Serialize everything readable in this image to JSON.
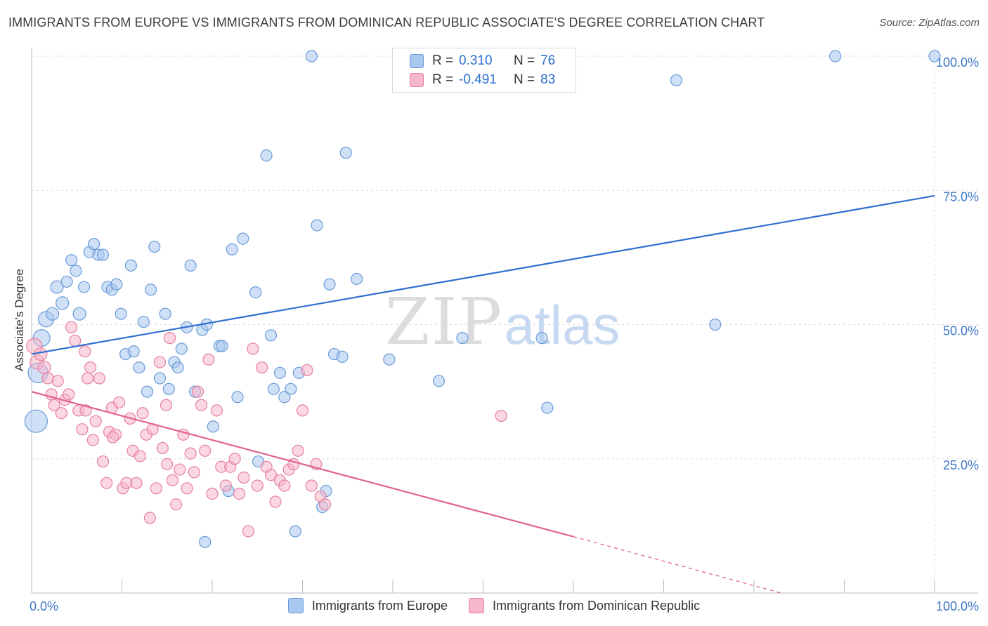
{
  "header": {
    "title": "IMMIGRANTS FROM EUROPE VS IMMIGRANTS FROM DOMINICAN REPUBLIC ASSOCIATE'S DEGREE CORRELATION CHART",
    "source": "Source: ZipAtlas.com"
  },
  "watermark": {
    "zip": "ZIP",
    "atlas": "atlas"
  },
  "legend": {
    "rows": [
      {
        "r_label": "R =",
        "r_value": "0.310",
        "n_label": "N =",
        "n_value": "76",
        "color": "#a9c8f0",
        "border": "#6a9bd8"
      },
      {
        "r_label": "R =",
        "r_value": "-0.491",
        "n_label": "N =",
        "n_value": "83",
        "color": "#f7b7cb",
        "border": "#e57fa2"
      }
    ]
  },
  "bottom_legend": [
    {
      "label": "Immigrants from Europe",
      "color": "#a9c8f0",
      "border": "#6a9bd8"
    },
    {
      "label": "Immigrants from Dominican Republic",
      "color": "#f7b7cb",
      "border": "#e57fa2"
    }
  ],
  "chart_data": {
    "type": "scatter",
    "title": "IMMIGRANTS FROM EUROPE VS IMMIGRANTS FROM DOMINICAN REPUBLIC ASSOCIATE'S DEGREE CORRELATION CHART",
    "xlabel": "",
    "ylabel": "Associate's Degree",
    "xlim": [
      0,
      100
    ],
    "ylim": [
      0,
      102
    ],
    "x_tick_labels": [
      {
        "value": 0,
        "label": "0.0%"
      },
      {
        "value": 100,
        "label": "100.0%"
      }
    ],
    "y_tick_labels": [
      {
        "value": 25,
        "label": "25.0%"
      },
      {
        "value": 50,
        "label": "50.0%"
      },
      {
        "value": 75,
        "label": "75.0%"
      },
      {
        "value": 100,
        "label": "100.0%"
      }
    ],
    "grid": true,
    "legend_position": "top-center",
    "series": [
      {
        "name": "Immigrants from Europe",
        "color": "#6a9bd8",
        "fill": "#a9c8f0",
        "trend": {
          "x": [
            0,
            100
          ],
          "y": [
            44.5,
            74
          ]
        },
        "points": [
          [
            0.5,
            32,
            16
          ],
          [
            0.7,
            41,
            14
          ],
          [
            1.1,
            47.5,
            12
          ],
          [
            1.6,
            51,
            11
          ],
          [
            2.3,
            52,
            9
          ],
          [
            2.8,
            57,
            9
          ],
          [
            3.4,
            54,
            9
          ],
          [
            3.9,
            58,
            8
          ],
          [
            4.4,
            62,
            8
          ],
          [
            4.9,
            60,
            8
          ],
          [
            5.3,
            52,
            9
          ],
          [
            5.8,
            57,
            8
          ],
          [
            6.4,
            63.5,
            8
          ],
          [
            6.9,
            65,
            8
          ],
          [
            7.4,
            63,
            8
          ],
          [
            7.9,
            63,
            8
          ],
          [
            8.4,
            57,
            8
          ],
          [
            8.9,
            56.5,
            8
          ],
          [
            9.4,
            57.5,
            8
          ],
          [
            9.9,
            52,
            8
          ],
          [
            10.4,
            44.5,
            8
          ],
          [
            11.0,
            61,
            8
          ],
          [
            11.3,
            45,
            8
          ],
          [
            11.9,
            42,
            8
          ],
          [
            12.4,
            50.5,
            8
          ],
          [
            12.8,
            37.5,
            8
          ],
          [
            13.2,
            56.5,
            8
          ],
          [
            13.6,
            64.5,
            8
          ],
          [
            14.2,
            40,
            8
          ],
          [
            14.8,
            52,
            8
          ],
          [
            15.2,
            38,
            8
          ],
          [
            15.8,
            43,
            8
          ],
          [
            16.2,
            42,
            8
          ],
          [
            16.6,
            45.5,
            8
          ],
          [
            17.2,
            49.5,
            8
          ],
          [
            17.6,
            61,
            8
          ],
          [
            18.1,
            37.5,
            8
          ],
          [
            18.9,
            49,
            8
          ],
          [
            19.2,
            9.5,
            8
          ],
          [
            19.4,
            50,
            8
          ],
          [
            20.1,
            31,
            8
          ],
          [
            20.8,
            46,
            8
          ],
          [
            21.1,
            46,
            8
          ],
          [
            21.8,
            19,
            8
          ],
          [
            22.2,
            64,
            8
          ],
          [
            22.8,
            36.5,
            8
          ],
          [
            23.4,
            66,
            8
          ],
          [
            24.8,
            56,
            8
          ],
          [
            25.1,
            24.5,
            8
          ],
          [
            26.0,
            81.5,
            8
          ],
          [
            26.5,
            48,
            8
          ],
          [
            26.8,
            38,
            8
          ],
          [
            27.5,
            41,
            8
          ],
          [
            28.0,
            36.5,
            8
          ],
          [
            28.7,
            38,
            8
          ],
          [
            29.2,
            11.5,
            8
          ],
          [
            29.6,
            41,
            8
          ],
          [
            31.0,
            100,
            8
          ],
          [
            31.6,
            68.5,
            8
          ],
          [
            32.2,
            16,
            8
          ],
          [
            32.6,
            19,
            8
          ],
          [
            33.0,
            57.5,
            8
          ],
          [
            33.5,
            44.5,
            8
          ],
          [
            34.4,
            44,
            8
          ],
          [
            34.8,
            82,
            8
          ],
          [
            36.0,
            58.5,
            8
          ],
          [
            39.6,
            43.5,
            8
          ],
          [
            45.1,
            39.5,
            8
          ],
          [
            47.7,
            47.5,
            8
          ],
          [
            50.5,
            100,
            8
          ],
          [
            56.5,
            47.5,
            8
          ],
          [
            57.1,
            34.5,
            8
          ],
          [
            71.4,
            95.5,
            8
          ],
          [
            75.7,
            50,
            8
          ],
          [
            89.0,
            100,
            8
          ],
          [
            100.0,
            100,
            8
          ]
        ]
      },
      {
        "name": "Immigrants from Dominican Republic",
        "color": "#e57fa2",
        "fill": "#f7b7cb",
        "trend": {
          "x": [
            0,
            60
          ],
          "y": [
            37.5,
            10.5
          ]
        },
        "trend_dashed": {
          "x": [
            60,
            83
          ],
          "y": [
            10.5,
            0
          ]
        },
        "points": [
          [
            0.3,
            46,
            11
          ],
          [
            0.6,
            43,
            10
          ],
          [
            1.0,
            44.5,
            9
          ],
          [
            1.4,
            42,
            9
          ],
          [
            1.8,
            40,
            8
          ],
          [
            2.2,
            37,
            8
          ],
          [
            2.5,
            35,
            8
          ],
          [
            2.9,
            39.5,
            8
          ],
          [
            3.3,
            33.5,
            8
          ],
          [
            3.7,
            36,
            8
          ],
          [
            4.1,
            37,
            8
          ],
          [
            4.4,
            49.5,
            8
          ],
          [
            4.8,
            47,
            8
          ],
          [
            5.2,
            34,
            8
          ],
          [
            5.6,
            30.5,
            8
          ],
          [
            5.9,
            45,
            8
          ],
          [
            6.2,
            40,
            8
          ],
          [
            6.5,
            42,
            8
          ],
          [
            6.8,
            28.5,
            8
          ],
          [
            7.1,
            32,
            8
          ],
          [
            7.5,
            40,
            8
          ],
          [
            7.9,
            24.5,
            8
          ],
          [
            8.3,
            20.5,
            8
          ],
          [
            8.6,
            30,
            8
          ],
          [
            8.9,
            34.5,
            8
          ],
          [
            9.3,
            29.5,
            8
          ],
          [
            9.7,
            35.5,
            8
          ],
          [
            10.1,
            19.5,
            8
          ],
          [
            10.5,
            20.5,
            8
          ],
          [
            10.9,
            32.5,
            8
          ],
          [
            11.2,
            26.5,
            8
          ],
          [
            11.6,
            20.5,
            8
          ],
          [
            12.0,
            25.5,
            8
          ],
          [
            12.3,
            33.5,
            8
          ],
          [
            12.7,
            29.5,
            8
          ],
          [
            13.1,
            14,
            8
          ],
          [
            13.4,
            30.5,
            8
          ],
          [
            13.8,
            19.5,
            8
          ],
          [
            14.2,
            43,
            8
          ],
          [
            14.5,
            27,
            8
          ],
          [
            14.9,
            35,
            8
          ],
          [
            15.3,
            47.5,
            8
          ],
          [
            15.6,
            21,
            8
          ],
          [
            16.0,
            16.5,
            8
          ],
          [
            16.4,
            23,
            8
          ],
          [
            16.8,
            29.5,
            8
          ],
          [
            17.2,
            19.5,
            8
          ],
          [
            17.6,
            26,
            8
          ],
          [
            18.0,
            22.5,
            8
          ],
          [
            18.4,
            37.5,
            8
          ],
          [
            18.8,
            35,
            8
          ],
          [
            19.2,
            26.5,
            8
          ],
          [
            19.6,
            43.5,
            8
          ],
          [
            20.0,
            18.5,
            8
          ],
          [
            20.5,
            34,
            8
          ],
          [
            21.0,
            23.5,
            8
          ],
          [
            21.5,
            20,
            8
          ],
          [
            22.0,
            23.5,
            8
          ],
          [
            22.5,
            25,
            8
          ],
          [
            23.0,
            18.5,
            8
          ],
          [
            23.5,
            21.5,
            8
          ],
          [
            24.0,
            11.5,
            8
          ],
          [
            24.5,
            45.5,
            8
          ],
          [
            25.0,
            20,
            8
          ],
          [
            25.5,
            42,
            8
          ],
          [
            26.0,
            23.5,
            8
          ],
          [
            26.5,
            22,
            8
          ],
          [
            27.0,
            17,
            8
          ],
          [
            27.5,
            21,
            8
          ],
          [
            28.0,
            20,
            8
          ],
          [
            28.5,
            23,
            8
          ],
          [
            29.0,
            24,
            8
          ],
          [
            29.5,
            26.5,
            8
          ],
          [
            30.0,
            34,
            8
          ],
          [
            30.5,
            41.5,
            8
          ],
          [
            31.0,
            20,
            8
          ],
          [
            31.5,
            24,
            8
          ],
          [
            32.0,
            18,
            8
          ],
          [
            32.5,
            16.5,
            8
          ],
          [
            52.0,
            33,
            8
          ],
          [
            6.0,
            34,
            8
          ],
          [
            9.0,
            29,
            8
          ],
          [
            15.0,
            24,
            8
          ]
        ]
      }
    ]
  }
}
